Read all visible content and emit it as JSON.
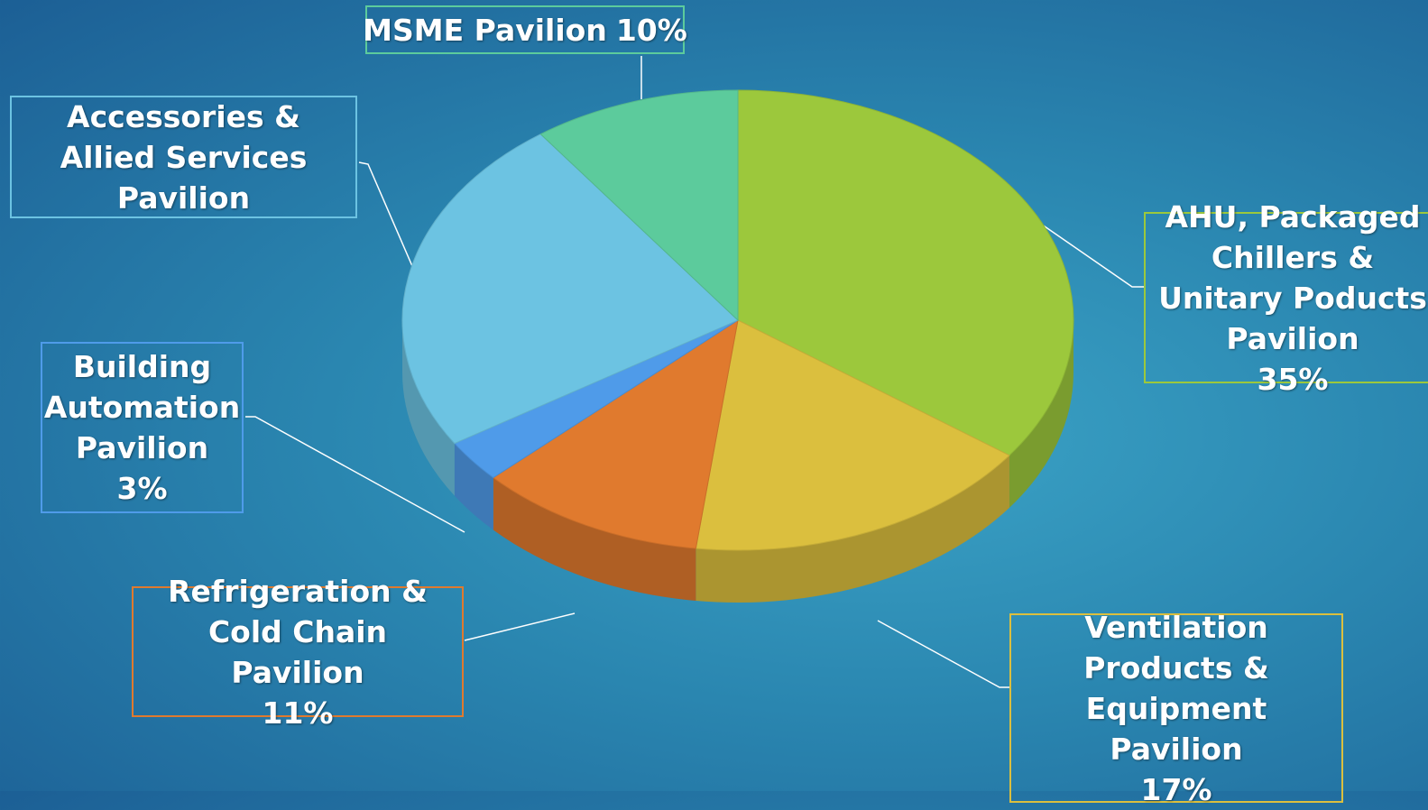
{
  "chart_data": {
    "type": "pie",
    "categories": [
      "AHU, Packaged Chillers & Unitary Poducts Pavilion",
      "Ventilation Products & Equipment Pavilion",
      "Refrigeration & Cold Chain Pavilion",
      "Building Automation Pavilion",
      "Accessories & Allied Services Pavilion",
      "MSME Pavilion"
    ],
    "values": [
      35,
      17,
      11,
      3,
      24,
      10
    ],
    "value_labels": [
      "35%",
      "17%",
      "11%",
      "3%",
      null,
      "10%"
    ],
    "colors": [
      "#9cc83c",
      "#dbbf3e",
      "#e07a2e",
      "#4f9be9",
      "#6cc3e2",
      "#5ccb9c"
    ]
  }
}
